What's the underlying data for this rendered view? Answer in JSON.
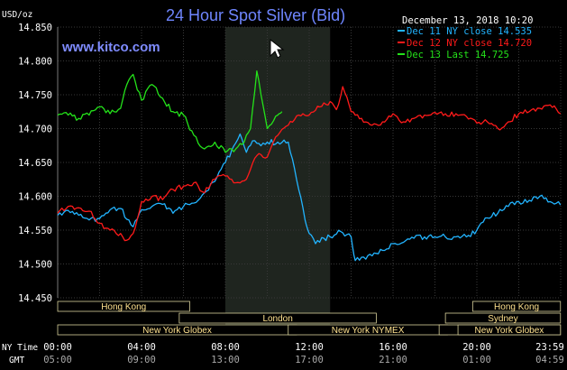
{
  "chart_data": {
    "type": "line",
    "title": "24 Hour Spot Silver (Bid)",
    "site": "www.kitco.com",
    "timestamp": "December 13, 2018 10:20",
    "ylabel": "USD/oz",
    "ylim": [
      14.45,
      14.85
    ],
    "yticks": [
      "14.850",
      "14.800",
      "14.750",
      "14.700",
      "14.650",
      "14.600",
      "14.550",
      "14.500",
      "14.450"
    ],
    "time_labels": {
      "ny_label": "NY Time",
      "gmt_label": "GMT",
      "ny": [
        "00:00",
        "04:00",
        "08:00",
        "12:00",
        "16:00",
        "20:00",
        "23:59"
      ],
      "gmt": [
        "05:00",
        "09:00",
        "13:00",
        "17:00",
        "21:00",
        "01:00",
        "04:59"
      ]
    },
    "sessions": [
      {
        "name": "Hong Kong",
        "start": 0.0,
        "end": 6.3,
        "row": 0
      },
      {
        "name": "London",
        "start": 5.8,
        "end": 15.2,
        "row": 1
      },
      {
        "name": "New York Globex",
        "start": 0.0,
        "end": 11.4,
        "row": 2
      },
      {
        "name": "New York NYMEX",
        "start": 11.0,
        "end": 18.6,
        "row": 2
      },
      {
        "name": "NY Globex",
        "start": 18.2,
        "end": 23.99,
        "row": 2
      },
      {
        "name": "Hong Kong",
        "start": 19.8,
        "end": 23.99,
        "row": 0
      },
      {
        "name": "Sydney",
        "start": 18.5,
        "end": 23.99,
        "row": 1
      },
      {
        "name": "New York Globex",
        "start": 19.1,
        "end": 23.99,
        "row": 2
      }
    ],
    "series": [
      {
        "name": "Dec 11 NY close 14.535",
        "color": "#22b4ff",
        "x": [
          0,
          0.5,
          1.0,
          1.5,
          2.0,
          2.5,
          3.0,
          3.3,
          3.6,
          4.0,
          4.5,
          5.0,
          5.5,
          6.0,
          6.5,
          7.0,
          7.5,
          8.0,
          8.3,
          8.7,
          9.0,
          9.3,
          9.6,
          10.0,
          10.5,
          11.0,
          11.5,
          11.8,
          12.0,
          12.3,
          12.7,
          13.0,
          13.5,
          14.0,
          14.2,
          14.5,
          15.0,
          15.5,
          16.0,
          16.5,
          17.0,
          17.5,
          18.0,
          18.5,
          19.0,
          19.5,
          20.0,
          20.5,
          21.0,
          21.5,
          22.0,
          22.5,
          23.0,
          23.5,
          23.99
        ],
        "values": [
          14.572,
          14.579,
          14.572,
          14.565,
          14.567,
          14.58,
          14.582,
          14.566,
          14.555,
          14.58,
          14.585,
          14.588,
          14.575,
          14.585,
          14.59,
          14.605,
          14.622,
          14.65,
          14.668,
          14.692,
          14.665,
          14.682,
          14.678,
          14.68,
          14.68,
          14.68,
          14.61,
          14.565,
          14.545,
          14.53,
          14.538,
          14.54,
          14.548,
          14.54,
          14.505,
          14.51,
          14.512,
          14.52,
          14.53,
          14.532,
          14.538,
          14.54,
          14.54,
          14.54,
          14.54,
          14.54,
          14.55,
          14.568,
          14.575,
          14.585,
          14.592,
          14.594,
          14.6,
          14.592,
          14.587
        ]
      },
      {
        "name": "Dec 12 NY close 14.720",
        "color": "#ff1a1a",
        "x": [
          0,
          0.5,
          1.0,
          1.5,
          2.0,
          2.5,
          3.0,
          3.3,
          3.6,
          4.0,
          4.5,
          5.0,
          5.5,
          6.0,
          6.5,
          7.0,
          7.5,
          8.0,
          8.5,
          9.0,
          9.5,
          10.0,
          10.5,
          11.0,
          11.5,
          12.0,
          12.5,
          13.0,
          13.3,
          13.6,
          14.0,
          14.5,
          15.0,
          15.5,
          16.0,
          16.5,
          17.0,
          17.5,
          18.0,
          18.5,
          19.0,
          19.5,
          20.0,
          20.5,
          21.0,
          21.5,
          22.0,
          22.5,
          23.0,
          23.5,
          23.99
        ],
        "values": [
          14.575,
          14.585,
          14.583,
          14.578,
          14.56,
          14.55,
          14.545,
          14.535,
          14.545,
          14.592,
          14.6,
          14.595,
          14.61,
          14.615,
          14.62,
          14.605,
          14.625,
          14.63,
          14.62,
          14.625,
          14.66,
          14.658,
          14.69,
          14.705,
          14.72,
          14.72,
          14.732,
          14.74,
          14.728,
          14.762,
          14.725,
          14.715,
          14.705,
          14.71,
          14.722,
          14.71,
          14.715,
          14.72,
          14.724,
          14.722,
          14.722,
          14.718,
          14.708,
          14.71,
          14.7,
          14.71,
          14.722,
          14.725,
          14.73,
          14.735,
          14.722
        ]
      },
      {
        "name": "Dec 13 Last 14.725",
        "color": "#24e21a",
        "x": [
          0,
          0.5,
          1.0,
          1.5,
          2.0,
          2.5,
          3.0,
          3.3,
          3.6,
          4.0,
          4.5,
          5.0,
          5.5,
          6.0,
          6.5,
          7.0,
          7.5,
          8.0,
          8.5,
          8.9,
          9.2,
          9.5,
          10.0,
          10.5,
          10.7
        ],
        "values": [
          14.72,
          14.72,
          14.715,
          14.72,
          14.732,
          14.722,
          14.73,
          14.765,
          14.78,
          14.742,
          14.765,
          14.745,
          14.725,
          14.72,
          14.69,
          14.67,
          14.68,
          14.665,
          14.67,
          14.68,
          14.7,
          14.785,
          14.7,
          14.72,
          14.725
        ]
      }
    ]
  }
}
